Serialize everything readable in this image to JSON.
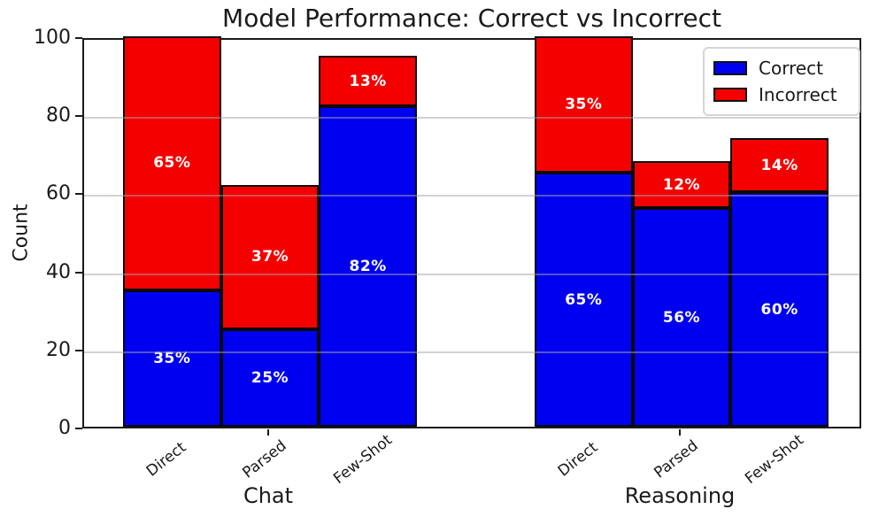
{
  "chart_data": {
    "type": "bar",
    "stacked": true,
    "title": "Model Performance: Correct vs Incorrect",
    "ylabel": "Count",
    "ylim": [
      0,
      100
    ],
    "yticks": [
      0,
      20,
      40,
      60,
      80,
      100
    ],
    "grid": {
      "axis": "y",
      "values": [
        20,
        40,
        60,
        80
      ],
      "style": "light gray, drawn over bars"
    },
    "categories": [
      "Direct",
      "Parsed",
      "Few-Shot"
    ],
    "series_names": [
      "Correct",
      "Incorrect"
    ],
    "colors": {
      "correct": "#0000f0",
      "incorrect": "#f50000",
      "bar_edge": "#0a0a0a",
      "segment_label": "#ffffff"
    },
    "legend": {
      "position": "upper right",
      "entries": [
        {
          "name": "Correct",
          "color": "#0000f0"
        },
        {
          "name": "Incorrect",
          "color": "#f50000"
        }
      ]
    },
    "groups": [
      {
        "label": "Chat",
        "bars": [
          {
            "category": "Direct",
            "segments": [
              {
                "series": "Correct",
                "value": 35,
                "label": "35%"
              },
              {
                "series": "Incorrect",
                "value": 65,
                "label": "65%"
              }
            ]
          },
          {
            "category": "Parsed",
            "segments": [
              {
                "series": "Correct",
                "value": 25,
                "label": "25%"
              },
              {
                "series": "Incorrect",
                "value": 37,
                "label": "37%"
              }
            ]
          },
          {
            "category": "Few-Shot",
            "segments": [
              {
                "series": "Correct",
                "value": 82,
                "label": "82%"
              },
              {
                "series": "Incorrect",
                "value": 13,
                "label": "13%"
              }
            ]
          }
        ]
      },
      {
        "label": "Reasoning",
        "bars": [
          {
            "category": "Direct",
            "segments": [
              {
                "series": "Correct",
                "value": 65,
                "label": "65%"
              },
              {
                "series": "Incorrect",
                "value": 35,
                "label": "35%"
              }
            ]
          },
          {
            "category": "Parsed",
            "segments": [
              {
                "series": "Correct",
                "value": 56,
                "label": "56%"
              },
              {
                "series": "Incorrect",
                "value": 12,
                "label": "12%"
              }
            ]
          },
          {
            "category": "Few-Shot",
            "segments": [
              {
                "series": "Correct",
                "value": 60,
                "label": "60%"
              },
              {
                "series": "Incorrect",
                "value": 14,
                "label": "14%"
              }
            ]
          }
        ]
      }
    ]
  }
}
